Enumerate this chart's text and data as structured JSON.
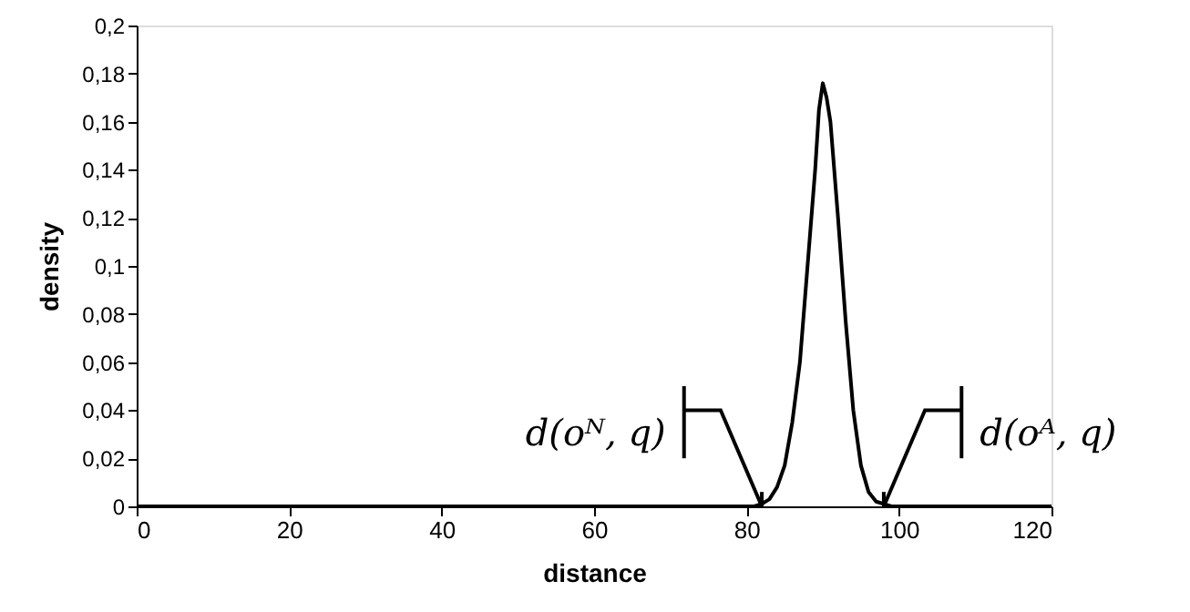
{
  "chart_data": {
    "type": "line",
    "xlabel": "distance",
    "ylabel": "density",
    "x": [
      0,
      80,
      81,
      82,
      83,
      84,
      85,
      86,
      87,
      88,
      89,
      89.5,
      90,
      90.5,
      91,
      92,
      93,
      94,
      95,
      96,
      97,
      98,
      99,
      100,
      120
    ],
    "series": [
      {
        "color": "#000000",
        "values": [
          0,
          0,
          0,
          0.001,
          0.003,
          0.008,
          0.017,
          0.035,
          0.06,
          0.1,
          0.14,
          0.165,
          0.176,
          0.17,
          0.16,
          0.12,
          0.077,
          0.04,
          0.017,
          0.006,
          0.002,
          0.001,
          0,
          0,
          0
        ]
      }
    ],
    "xlim": [
      0,
      120
    ],
    "xticks": [
      0,
      20,
      40,
      60,
      80,
      100,
      120
    ],
    "ylim": [
      0,
      0.2
    ],
    "yticks": [
      0,
      {
        "value": 0.02,
        "label": "0,02"
      },
      {
        "value": 0.04,
        "label": "0,04"
      },
      {
        "value": 0.06,
        "label": "0,06"
      },
      {
        "value": 0.08,
        "label": "0,08"
      },
      {
        "value": 0.1,
        "label": "0,1"
      },
      {
        "value": 0.12,
        "label": "0,12"
      },
      {
        "value": 0.14,
        "label": "0,14"
      },
      {
        "value": 0.16,
        "label": "0,16"
      },
      {
        "value": 0.18,
        "label": "0,18"
      },
      {
        "value": 0.2,
        "label": "0,2"
      }
    ],
    "annotations": [
      {
        "text": "d(oᴺ, q)",
        "x": 82,
        "y": 0
      },
      {
        "text": "d(oᴬ, q)",
        "x": 98,
        "y": 0
      }
    ],
    "grid": false,
    "marker": "none",
    "line_style": "solid"
  }
}
